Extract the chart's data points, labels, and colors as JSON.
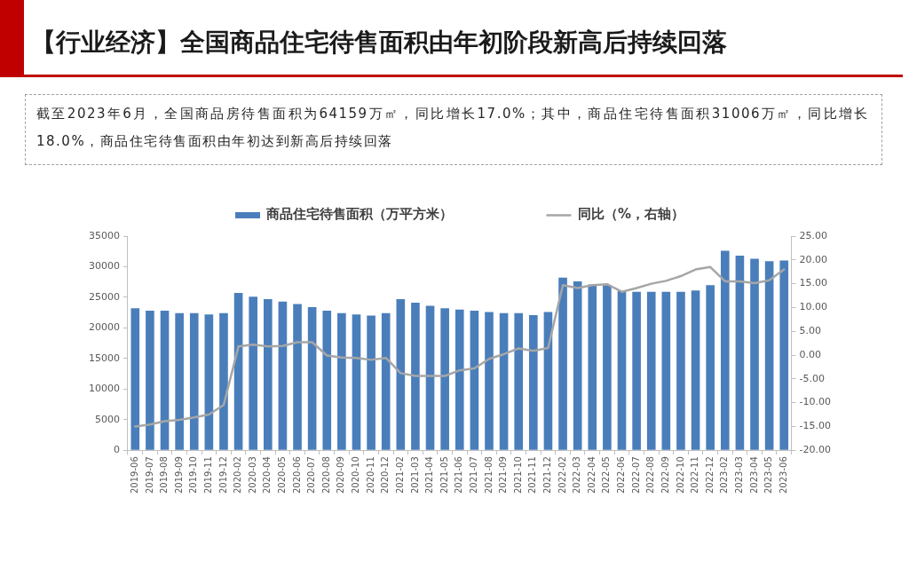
{
  "chart_data": {
    "type": "bar",
    "title": "【行业经济】全国商品住宅待售面积由年初阶段新高后持续回落",
    "subtitle": "截至2023年6月，全国商品房待售面积为64159万㎡，同比增长17.0%；其中，商品住宅待售面积31006万㎡，同比增长18.0%，商品住宅待售面积由年初达到新高后持续回落",
    "categories": [
      "2019-06",
      "2019-07",
      "2019-08",
      "2019-09",
      "2019-10",
      "2019-11",
      "2019-12",
      "2020-02",
      "2020-03",
      "2020-04",
      "2020-05",
      "2020-06",
      "2020-07",
      "2020-08",
      "2020-09",
      "2020-10",
      "2020-11",
      "2020-12",
      "2021-02",
      "2021-03",
      "2021-04",
      "2021-05",
      "2021-06",
      "2021-07",
      "2021-08",
      "2021-09",
      "2021-10",
      "2021-11",
      "2021-12",
      "2022-02",
      "2022-03",
      "2022-04",
      "2022-05",
      "2022-06",
      "2022-07",
      "2022-08",
      "2022-09",
      "2022-10",
      "2022-11",
      "2022-12",
      "2023-02",
      "2023-03",
      "2023-04",
      "2023-05",
      "2023-06"
    ],
    "series": [
      {
        "name": "商品住宅待售面积（万平方米）",
        "color": "#4a7ebb",
        "values": [
          23200,
          22800,
          22800,
          22400,
          22400,
          22200,
          22400,
          25700,
          25100,
          24700,
          24300,
          23900,
          23400,
          22800,
          22400,
          22200,
          22000,
          22400,
          24700,
          24100,
          23600,
          23200,
          23000,
          22800,
          22600,
          22400,
          22400,
          22100,
          22600,
          28200,
          27600,
          27100,
          27000,
          26000,
          25900,
          25900,
          25900,
          25900,
          26100,
          27000,
          32600,
          31800,
          31300,
          30900,
          31000
        ]
      },
      {
        "name": "同比（%，右轴）",
        "type": "line",
        "axis": "y2",
        "color": "#a6a6a6",
        "values": [
          -15.0,
          -14.6,
          -13.9,
          -13.6,
          -13.1,
          -12.5,
          -10.5,
          1.8,
          2.2,
          1.8,
          1.9,
          2.7,
          2.7,
          -0.1,
          -0.5,
          -0.6,
          -1.0,
          -0.6,
          -3.8,
          -4.4,
          -4.4,
          -4.4,
          -3.2,
          -2.8,
          -0.8,
          0.2,
          1.4,
          0.9,
          1.5,
          14.7,
          14.1,
          14.7,
          14.9,
          13.3,
          14.1,
          15.0,
          15.6,
          16.6,
          18.0,
          18.5,
          15.5,
          15.5,
          15.1,
          15.7,
          18.0
        ]
      }
    ],
    "ylim": [
      0,
      35000
    ],
    "yticks": [
      0,
      5000,
      10000,
      15000,
      20000,
      25000,
      30000,
      35000
    ],
    "y2lim": [
      -20,
      25
    ],
    "y2ticks": [
      {
        "value": -20,
        "label": "-20.00"
      },
      {
        "value": -15,
        "label": "-15.00"
      },
      {
        "value": -10,
        "label": "-10.00"
      },
      {
        "value": -5,
        "label": "-5.00"
      },
      {
        "value": 0,
        "label": "0.00"
      },
      {
        "value": 5,
        "label": "5.00"
      },
      {
        "value": 10,
        "label": "10.00"
      },
      {
        "value": 15,
        "label": "15.00"
      },
      {
        "value": 20,
        "label": "20.00"
      },
      {
        "value": 25,
        "label": "25.00"
      }
    ],
    "grid": false,
    "legend": "top",
    "marker": "none",
    "line_style": "solid"
  }
}
